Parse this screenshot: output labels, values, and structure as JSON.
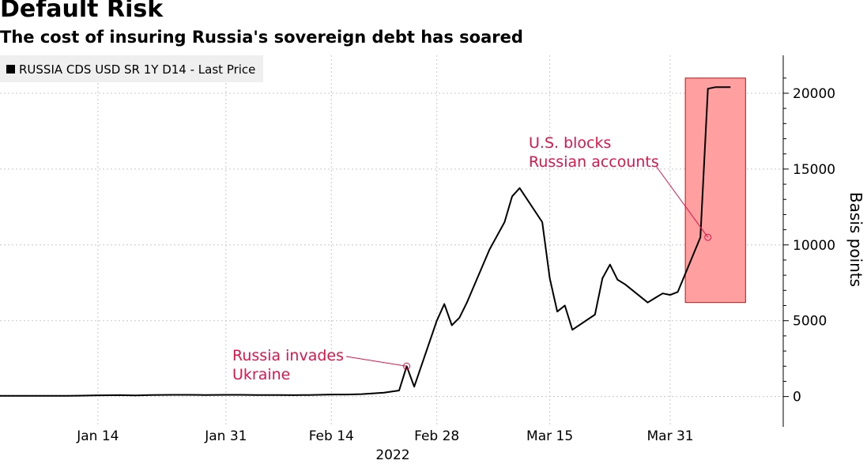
{
  "title": "Default Risk",
  "subtitle": "The cost of insuring Russia's sovereign debt has soared",
  "chart_data": {
    "type": "line",
    "title": "Default Risk",
    "subtitle": "The cost of insuring Russia's sovereign debt has soared",
    "ylabel": "Basis points",
    "year_label": "2022",
    "x_axis_start": "2022-01-01",
    "x_axis_end": "2022-04-15",
    "ylim": [
      -2000,
      22500
    ],
    "yticks": [
      0,
      5000,
      10000,
      15000,
      20000
    ],
    "xticks": [
      {
        "label": "Jan 14",
        "date": "2022-01-14"
      },
      {
        "label": "Jan 31",
        "date": "2022-01-31"
      },
      {
        "label": "Feb 14",
        "date": "2022-02-14"
      },
      {
        "label": "Feb 28",
        "date": "2022-02-28"
      },
      {
        "label": "Mar 15",
        "date": "2022-03-15"
      },
      {
        "label": "Mar 31",
        "date": "2022-03-31"
      }
    ],
    "grid": true,
    "legend_position": "top-left",
    "series": [
      {
        "name": "RUSSIA CDS USD SR 1Y D14 - Last Price",
        "color": "#000000",
        "x": [
          "2022-01-01",
          "2022-01-03",
          "2022-01-05",
          "2022-01-07",
          "2022-01-10",
          "2022-01-12",
          "2022-01-14",
          "2022-01-17",
          "2022-01-19",
          "2022-01-21",
          "2022-01-24",
          "2022-01-26",
          "2022-01-28",
          "2022-01-31",
          "2022-02-02",
          "2022-02-04",
          "2022-02-07",
          "2022-02-09",
          "2022-02-11",
          "2022-02-14",
          "2022-02-16",
          "2022-02-18",
          "2022-02-21",
          "2022-02-23",
          "2022-02-24",
          "2022-02-25",
          "2022-02-28",
          "2022-03-01",
          "2022-03-02",
          "2022-03-03",
          "2022-03-04",
          "2022-03-07",
          "2022-03-08",
          "2022-03-09",
          "2022-03-10",
          "2022-03-11",
          "2022-03-14",
          "2022-03-15",
          "2022-03-16",
          "2022-03-17",
          "2022-03-18",
          "2022-03-21",
          "2022-03-22",
          "2022-03-23",
          "2022-03-24",
          "2022-03-25",
          "2022-03-28",
          "2022-03-29",
          "2022-03-30",
          "2022-03-31",
          "2022-04-01",
          "2022-04-04",
          "2022-04-05",
          "2022-04-06",
          "2022-04-07",
          "2022-04-08"
        ],
        "values": [
          50,
          50,
          50,
          50,
          50,
          60,
          80,
          90,
          70,
          100,
          110,
          110,
          100,
          110,
          110,
          100,
          100,
          90,
          100,
          130,
          130,
          160,
          250,
          400,
          2000,
          650,
          5000,
          6100,
          4700,
          5200,
          6200,
          9700,
          10600,
          11500,
          13200,
          13750,
          11500,
          7800,
          5600,
          6000,
          4400,
          5400,
          7800,
          8700,
          7700,
          7400,
          6200,
          6500,
          6800,
          6700,
          6900,
          10500,
          20300,
          20400,
          20400,
          20400
        ]
      }
    ],
    "annotations": [
      {
        "text": [
          "Russia invades",
          "Ukraine"
        ],
        "x": "2022-02-24",
        "y": 2000
      },
      {
        "text": [
          "U.S. blocks",
          "Russian accounts"
        ],
        "x": "2022-04-05",
        "y": 10500
      }
    ],
    "highlight": {
      "x_from": "2022-04-02",
      "x_to": "2022-04-10",
      "y_from": 6200,
      "y_to": 21000,
      "color": "#ff9f9f"
    }
  }
}
